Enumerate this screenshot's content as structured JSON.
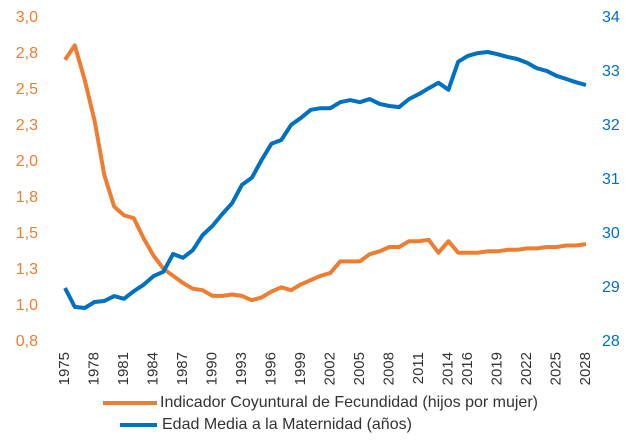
{
  "chart_data": {
    "type": "line",
    "categories": [
      "1975",
      null,
      null,
      "1978",
      null,
      null,
      "1981",
      null,
      null,
      "1984",
      null,
      null,
      "1987",
      null,
      null,
      "1990",
      null,
      null,
      "1993",
      null,
      null,
      "1996",
      null,
      null,
      "1999",
      null,
      null,
      "2002",
      null,
      null,
      "2005",
      null,
      null,
      "2008",
      null,
      null,
      "2011",
      null,
      null,
      "2014",
      null,
      "2016",
      null,
      null,
      "2019",
      null,
      null,
      "2022",
      null,
      null,
      "2025",
      null,
      null,
      "2028"
    ],
    "series": [
      {
        "name": "Indicador Coyuntural de Fecundidad (hijos por mujer)",
        "color": "#ed7d31",
        "axis": "y",
        "values": [
          2.71,
          2.81,
          2.57,
          2.29,
          1.91,
          1.69,
          1.63,
          1.61,
          1.47,
          1.35,
          1.26,
          1.21,
          1.16,
          1.12,
          1.11,
          1.07,
          1.07,
          1.08,
          1.07,
          1.04,
          1.06,
          1.1,
          1.13,
          1.11,
          1.15,
          1.18,
          1.21,
          1.23,
          1.31,
          1.31,
          1.31,
          1.36,
          1.38,
          1.41,
          1.41,
          1.45,
          1.45,
          1.46,
          1.37,
          1.45,
          1.37,
          1.37,
          1.37,
          1.38,
          1.38,
          1.39,
          1.39,
          1.4,
          1.4,
          1.41,
          1.41,
          1.42,
          1.42,
          1.43
        ]
      },
      {
        "name": "Edad Media a la Maternidad (años)",
        "color": "#0070c0",
        "axis": "y2",
        "values": [
          29.0,
          28.65,
          28.63,
          28.74,
          28.76,
          28.85,
          28.8,
          28.94,
          29.06,
          29.22,
          29.3,
          29.63,
          29.56,
          29.7,
          29.98,
          30.15,
          30.37,
          30.57,
          30.91,
          31.04,
          31.37,
          31.67,
          31.74,
          32.02,
          32.15,
          32.3,
          32.33,
          32.33,
          32.44,
          32.48,
          32.44,
          32.5,
          32.41,
          32.37,
          32.35,
          32.5,
          32.59,
          32.7,
          32.8,
          32.67,
          33.19,
          33.3,
          33.35,
          33.37,
          33.33,
          33.28,
          33.24,
          33.17,
          33.07,
          33.02,
          32.93,
          32.87,
          32.81,
          32.76
        ]
      }
    ],
    "ylim": [
      0.75,
      3.0
    ],
    "yticks": [
      {
        "value": 0.75,
        "label": "0,8"
      },
      {
        "value": 1.0,
        "label": "1,0"
      },
      {
        "value": 1.25,
        "label": "1,3"
      },
      {
        "value": 1.5,
        "label": "1,5"
      },
      {
        "value": 1.75,
        "label": "1,8"
      },
      {
        "value": 2.0,
        "label": "2,0"
      },
      {
        "value": 2.25,
        "label": "2,3"
      },
      {
        "value": 2.5,
        "label": "2,5"
      },
      {
        "value": 2.75,
        "label": "2,8"
      },
      {
        "value": 3.0,
        "label": "3,0"
      }
    ],
    "y2lim": [
      28,
      34
    ],
    "y2ticks": [
      28,
      29,
      30,
      31,
      32,
      33,
      34
    ],
    "yaxis_color": "#ed7d31",
    "y2axis_color": "#0070c0"
  }
}
